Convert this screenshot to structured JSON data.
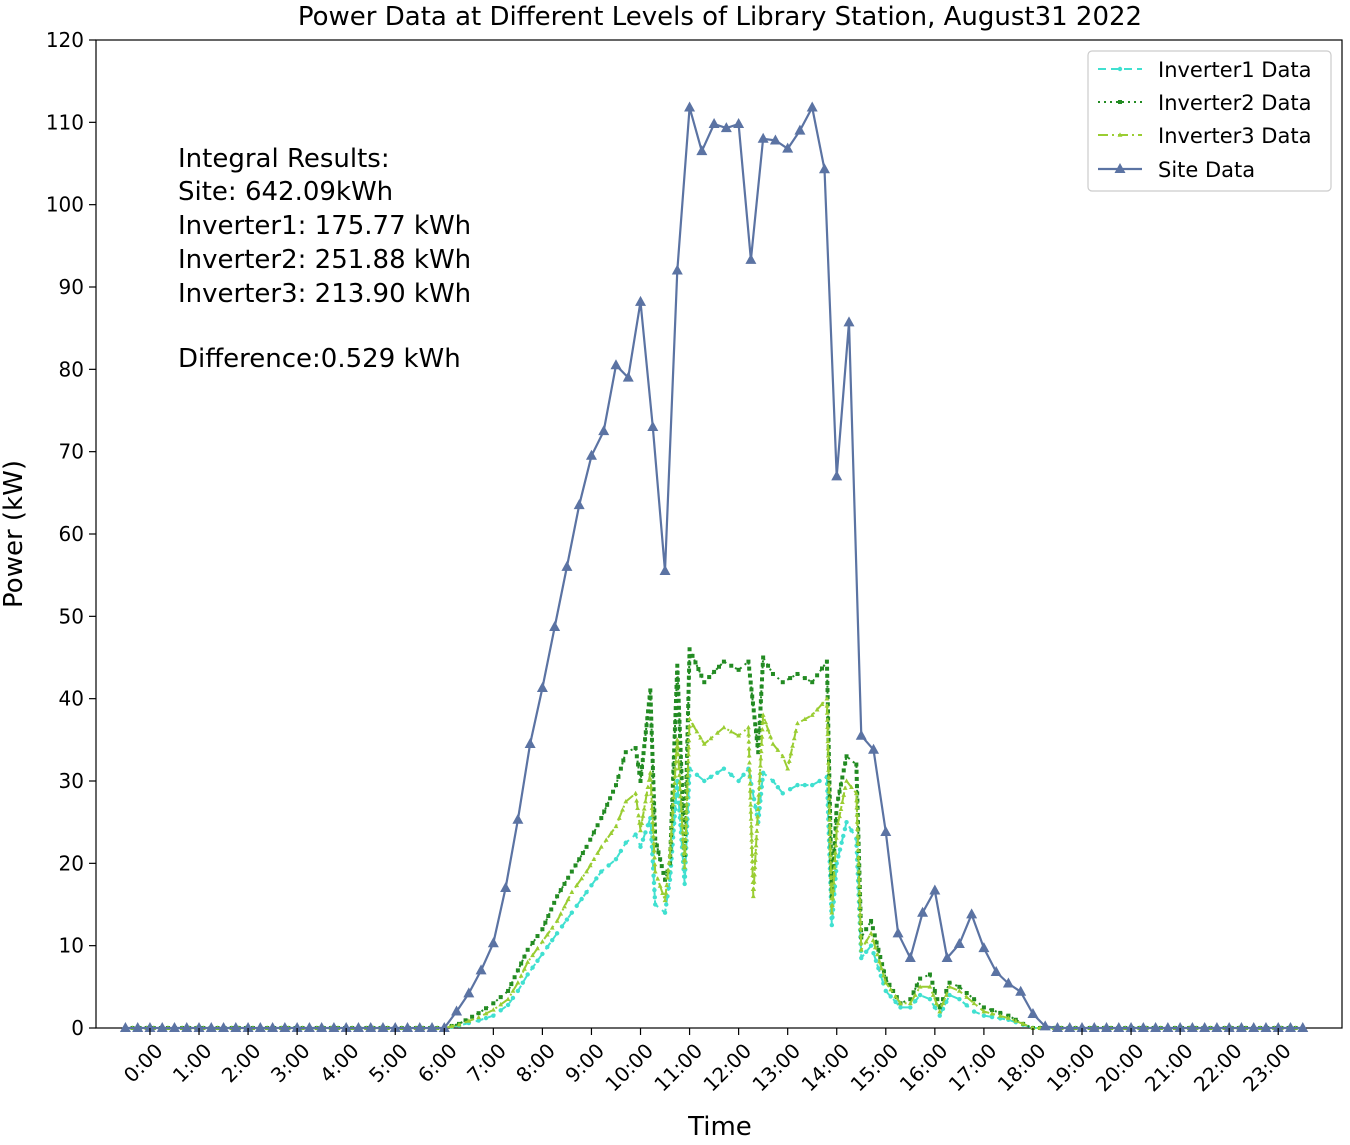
{
  "chart_data": {
    "type": "line",
    "title": "Power Data at Different Levels of Library Station, August31 2022",
    "xlabel": "Time",
    "ylabel": "Power (kW)",
    "ylim": [
      0,
      120
    ],
    "yticks": [
      0,
      10,
      20,
      30,
      40,
      50,
      60,
      70,
      80,
      90,
      100,
      110,
      120
    ],
    "xticks": [
      "0:00",
      "1:00",
      "2:00",
      "3:00",
      "4:00",
      "5:00",
      "6:00",
      "7:00",
      "8:00",
      "9:00",
      "10:00",
      "11:00",
      "12:00",
      "13:00",
      "14:00",
      "15:00",
      "16:00",
      "17:00",
      "18:00",
      "19:00",
      "20:00",
      "21:00",
      "22:00",
      "23:00"
    ],
    "xlim_hours": [
      -1.1,
      24.3
    ],
    "legend_position": "upper right",
    "annotation": [
      "Integral Results:",
      "Site: 642.09kWh",
      "Inverter1: 175.77 kWh",
      "Inverter2: 251.88 kWh",
      "Inverter3: 213.90 kWh",
      "",
      "Difference:0.529 kWh"
    ],
    "colors": {
      "inverter1": "#40e0d0",
      "inverter2": "#228b22",
      "inverter3": "#9acd32",
      "site": "#5b73a3"
    },
    "series": [
      {
        "name": "Inverter1 Data",
        "key": "inverter1",
        "style": "dashed-circle",
        "points": [
          [
            -0.5,
            0
          ],
          [
            6.0,
            0
          ],
          [
            6.3,
            0.3
          ],
          [
            6.7,
            0.9
          ],
          [
            7.0,
            1.5
          ],
          [
            7.3,
            2.8
          ],
          [
            7.5,
            4.5
          ],
          [
            7.7,
            6.5
          ],
          [
            8.0,
            9.0
          ],
          [
            8.3,
            11.5
          ],
          [
            8.6,
            14.0
          ],
          [
            8.9,
            16.5
          ],
          [
            9.2,
            19.0
          ],
          [
            9.5,
            20.5
          ],
          [
            9.7,
            22.5
          ],
          [
            9.9,
            23.5
          ],
          [
            10.0,
            22.0
          ],
          [
            10.2,
            25.5
          ],
          [
            10.3,
            15.0
          ],
          [
            10.5,
            14.0
          ],
          [
            10.6,
            18.0
          ],
          [
            10.75,
            30.0
          ],
          [
            10.9,
            17.5
          ],
          [
            11.0,
            31.5
          ],
          [
            11.3,
            30.0
          ],
          [
            11.7,
            31.5
          ],
          [
            12.0,
            30.0
          ],
          [
            12.2,
            31.5
          ],
          [
            12.4,
            25.0
          ],
          [
            12.5,
            31.0
          ],
          [
            12.7,
            30.0
          ],
          [
            12.9,
            28.5
          ],
          [
            13.2,
            29.5
          ],
          [
            13.5,
            29.5
          ],
          [
            13.8,
            30.5
          ],
          [
            13.9,
            12.5
          ],
          [
            14.0,
            20.0
          ],
          [
            14.2,
            25.0
          ],
          [
            14.4,
            23.0
          ],
          [
            14.5,
            8.5
          ],
          [
            14.7,
            10.0
          ],
          [
            15.0,
            4.5
          ],
          [
            15.3,
            2.5
          ],
          [
            15.5,
            2.5
          ],
          [
            15.7,
            4.0
          ],
          [
            15.9,
            3.5
          ],
          [
            16.1,
            1.5
          ],
          [
            16.3,
            4.0
          ],
          [
            16.5,
            3.5
          ],
          [
            16.8,
            2.0
          ],
          [
            17.0,
            1.5
          ],
          [
            17.5,
            1.0
          ],
          [
            17.8,
            0.4
          ],
          [
            18.0,
            0
          ],
          [
            23.5,
            0
          ]
        ]
      },
      {
        "name": "Inverter2 Data",
        "key": "inverter2",
        "style": "dotted-square",
        "points": [
          [
            -0.5,
            0
          ],
          [
            6.0,
            0
          ],
          [
            6.3,
            0.5
          ],
          [
            6.7,
            1.8
          ],
          [
            7.0,
            3.0
          ],
          [
            7.3,
            4.5
          ],
          [
            7.5,
            7.0
          ],
          [
            7.7,
            9.5
          ],
          [
            8.0,
            12.0
          ],
          [
            8.3,
            16.0
          ],
          [
            8.6,
            19.0
          ],
          [
            8.9,
            22.0
          ],
          [
            9.2,
            25.5
          ],
          [
            9.5,
            29.5
          ],
          [
            9.7,
            33.5
          ],
          [
            9.9,
            34.0
          ],
          [
            10.0,
            30.0
          ],
          [
            10.2,
            41.0
          ],
          [
            10.3,
            23.0
          ],
          [
            10.5,
            18.0
          ],
          [
            10.6,
            20.0
          ],
          [
            10.75,
            44.0
          ],
          [
            10.9,
            21.0
          ],
          [
            11.0,
            46.0
          ],
          [
            11.3,
            42.0
          ],
          [
            11.7,
            44.5
          ],
          [
            12.0,
            43.5
          ],
          [
            12.2,
            44.5
          ],
          [
            12.4,
            33.5
          ],
          [
            12.5,
            45.0
          ],
          [
            12.7,
            43.0
          ],
          [
            12.9,
            42.0
          ],
          [
            13.2,
            43.0
          ],
          [
            13.5,
            42.0
          ],
          [
            13.8,
            44.5
          ],
          [
            13.9,
            16.0
          ],
          [
            14.0,
            27.0
          ],
          [
            14.2,
            33.0
          ],
          [
            14.4,
            32.0
          ],
          [
            14.5,
            11.0
          ],
          [
            14.7,
            13.0
          ],
          [
            15.0,
            6.0
          ],
          [
            15.3,
            3.0
          ],
          [
            15.5,
            3.5
          ],
          [
            15.7,
            6.0
          ],
          [
            15.9,
            6.5
          ],
          [
            16.1,
            2.5
          ],
          [
            16.3,
            5.5
          ],
          [
            16.5,
            5.0
          ],
          [
            16.8,
            3.5
          ],
          [
            17.0,
            2.5
          ],
          [
            17.5,
            1.5
          ],
          [
            17.8,
            0.5
          ],
          [
            18.0,
            0
          ],
          [
            23.5,
            0
          ]
        ]
      },
      {
        "name": "Inverter3 Data",
        "key": "inverter3",
        "style": "dashdot-triangle",
        "points": [
          [
            -0.5,
            0
          ],
          [
            6.0,
            0
          ],
          [
            6.3,
            0.4
          ],
          [
            6.7,
            1.3
          ],
          [
            7.0,
            2.2
          ],
          [
            7.3,
            3.5
          ],
          [
            7.5,
            5.5
          ],
          [
            7.7,
            8.0
          ],
          [
            8.0,
            10.5
          ],
          [
            8.3,
            13.0
          ],
          [
            8.6,
            16.5
          ],
          [
            8.9,
            19.0
          ],
          [
            9.2,
            22.0
          ],
          [
            9.5,
            24.5
          ],
          [
            9.7,
            27.5
          ],
          [
            9.9,
            28.5
          ],
          [
            10.0,
            24.0
          ],
          [
            10.2,
            31.0
          ],
          [
            10.3,
            19.0
          ],
          [
            10.5,
            15.5
          ],
          [
            10.6,
            21.0
          ],
          [
            10.75,
            35.0
          ],
          [
            10.9,
            19.5
          ],
          [
            11.0,
            37.5
          ],
          [
            11.3,
            34.5
          ],
          [
            11.7,
            36.5
          ],
          [
            12.0,
            35.5
          ],
          [
            12.2,
            36.5
          ],
          [
            12.3,
            16.0
          ],
          [
            12.5,
            38.0
          ],
          [
            12.7,
            34.5
          ],
          [
            12.9,
            33.0
          ],
          [
            13.0,
            31.5
          ],
          [
            13.2,
            37.0
          ],
          [
            13.5,
            38.0
          ],
          [
            13.8,
            40.0
          ],
          [
            13.9,
            14.0
          ],
          [
            14.0,
            24.0
          ],
          [
            14.2,
            30.0
          ],
          [
            14.4,
            28.5
          ],
          [
            14.5,
            9.5
          ],
          [
            14.7,
            11.5
          ],
          [
            15.0,
            5.5
          ],
          [
            15.3,
            3.0
          ],
          [
            15.5,
            3.0
          ],
          [
            15.7,
            5.0
          ],
          [
            15.9,
            5.0
          ],
          [
            16.1,
            2.0
          ],
          [
            16.3,
            5.0
          ],
          [
            16.5,
            4.5
          ],
          [
            16.8,
            3.0
          ],
          [
            17.0,
            2.0
          ],
          [
            17.5,
            1.2
          ],
          [
            17.8,
            0.5
          ],
          [
            18.0,
            0
          ],
          [
            23.5,
            0
          ]
        ]
      },
      {
        "name": "Site Data",
        "key": "site",
        "style": "solid-triangle",
        "points": [
          [
            -0.5,
            0
          ],
          [
            -0.25,
            0
          ],
          [
            0.0,
            0
          ],
          [
            0.25,
            0
          ],
          [
            0.5,
            0
          ],
          [
            0.75,
            0
          ],
          [
            1.0,
            0
          ],
          [
            1.25,
            0
          ],
          [
            1.5,
            0
          ],
          [
            1.75,
            0
          ],
          [
            2.0,
            0
          ],
          [
            2.25,
            0
          ],
          [
            2.5,
            0
          ],
          [
            2.75,
            0
          ],
          [
            3.0,
            0
          ],
          [
            3.25,
            0
          ],
          [
            3.5,
            0
          ],
          [
            3.75,
            0
          ],
          [
            4.0,
            0
          ],
          [
            4.25,
            0
          ],
          [
            4.5,
            0
          ],
          [
            4.75,
            0
          ],
          [
            5.0,
            0
          ],
          [
            5.25,
            0
          ],
          [
            5.5,
            0
          ],
          [
            5.75,
            0
          ],
          [
            6.0,
            0
          ],
          [
            6.25,
            2.0
          ],
          [
            6.5,
            4.2
          ],
          [
            6.75,
            7.0
          ],
          [
            7.0,
            10.3
          ],
          [
            7.25,
            17.0
          ],
          [
            7.5,
            25.3
          ],
          [
            7.75,
            34.5
          ],
          [
            8.0,
            41.3
          ],
          [
            8.25,
            48.7
          ],
          [
            8.5,
            56.0
          ],
          [
            8.75,
            63.5
          ],
          [
            9.0,
            69.5
          ],
          [
            9.25,
            72.5
          ],
          [
            9.5,
            80.5
          ],
          [
            9.75,
            79.0
          ],
          [
            10.0,
            88.2
          ],
          [
            10.25,
            73.0
          ],
          [
            10.5,
            55.5
          ],
          [
            10.75,
            92.0
          ],
          [
            11.0,
            111.8
          ],
          [
            11.25,
            106.5
          ],
          [
            11.5,
            109.8
          ],
          [
            11.75,
            109.3
          ],
          [
            12.0,
            109.8
          ],
          [
            12.25,
            93.3
          ],
          [
            12.5,
            108.0
          ],
          [
            12.75,
            107.8
          ],
          [
            13.0,
            106.8
          ],
          [
            13.25,
            109.0
          ],
          [
            13.5,
            111.8
          ],
          [
            13.75,
            104.3
          ],
          [
            14.0,
            67.0
          ],
          [
            14.25,
            85.7
          ],
          [
            14.5,
            35.5
          ],
          [
            14.75,
            33.8
          ],
          [
            15.0,
            23.8
          ],
          [
            15.25,
            11.5
          ],
          [
            15.5,
            8.5
          ],
          [
            15.75,
            14.0
          ],
          [
            16.0,
            16.7
          ],
          [
            16.25,
            8.5
          ],
          [
            16.5,
            10.2
          ],
          [
            16.75,
            13.8
          ],
          [
            17.0,
            9.7
          ],
          [
            17.25,
            6.8
          ],
          [
            17.5,
            5.4
          ],
          [
            17.75,
            4.4
          ],
          [
            18.0,
            1.7
          ],
          [
            18.25,
            0.2
          ],
          [
            18.5,
            0
          ],
          [
            18.75,
            0
          ],
          [
            19.0,
            0
          ],
          [
            19.25,
            0
          ],
          [
            19.5,
            0
          ],
          [
            19.75,
            0
          ],
          [
            20.0,
            0
          ],
          [
            20.25,
            0
          ],
          [
            20.5,
            0
          ],
          [
            20.75,
            0
          ],
          [
            21.0,
            0
          ],
          [
            21.25,
            0
          ],
          [
            21.5,
            0
          ],
          [
            21.75,
            0
          ],
          [
            22.0,
            0
          ],
          [
            22.25,
            0
          ],
          [
            22.5,
            0
          ],
          [
            22.75,
            0
          ],
          [
            23.0,
            0
          ],
          [
            23.25,
            0
          ],
          [
            23.5,
            0
          ]
        ]
      }
    ]
  }
}
